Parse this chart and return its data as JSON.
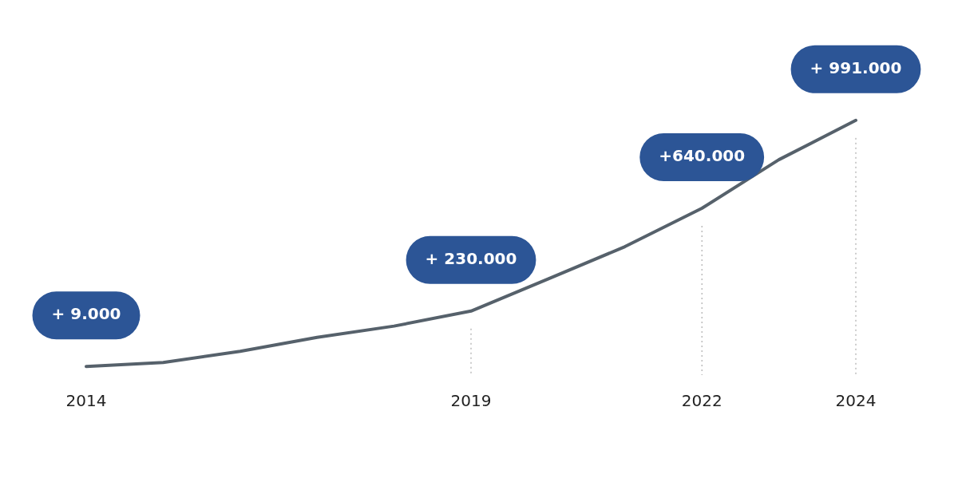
{
  "chart_data": {
    "type": "line",
    "categories": [
      "2014",
      null,
      null,
      null,
      null,
      "2019",
      null,
      null,
      "2022",
      null,
      "2024"
    ],
    "series": [
      {
        "color": "#56616b",
        "values": [
          9000,
          25000,
          69000,
          125000,
          170000,
          230000,
          358000,
          487000,
          640000,
          834000,
          991000
        ],
        "value_labels": [
          "+ 9.000",
          null,
          null,
          null,
          null,
          "+ 230.000",
          null,
          null,
          "+640.000",
          null,
          "+ 991.000"
        ]
      }
    ],
    "ref_lines": [
      {
        "axis": "x",
        "value": "2019",
        "color": "#9a9a9a",
        "line_style": "dotted"
      },
      {
        "axis": "x",
        "value": "2022",
        "color": "#9a9a9a",
        "line_style": "dotted"
      },
      {
        "axis": "x",
        "value": "2024",
        "color": "#9a9a9a",
        "line_style": "dotted"
      }
    ],
    "grid": false,
    "legend": false,
    "marker": "none",
    "line_style": "solid",
    "tick_labels": "x"
  }
}
